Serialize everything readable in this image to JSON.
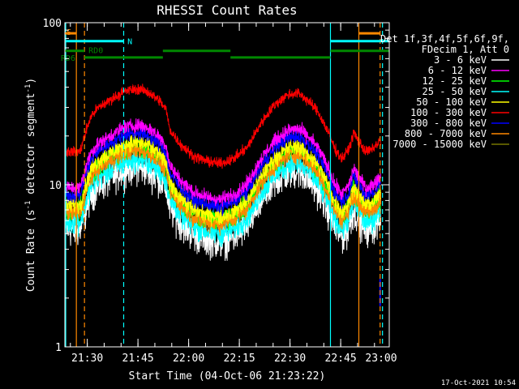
{
  "chart_data": {
    "type": "line",
    "title": "RHESSI Count Rates",
    "xlabel": "Start Time (04-Oct-06 21:23:22)",
    "ylabel_main": "Count Rate (s",
    "ylabel_sup1": "-1",
    "ylabel_mid": " detector segment",
    "ylabel_sup2": "-1",
    "ylabel_end": ")",
    "yscale": "log",
    "ylim": [
      1,
      100
    ],
    "xlim_minutes": [
      0,
      96
    ],
    "xticks": [
      {
        "label": "21:30",
        "minutes": 6.63
      },
      {
        "label": "21:45",
        "minutes": 21.63
      },
      {
        "label": "22:00",
        "minutes": 36.63
      },
      {
        "label": "22:15",
        "minutes": 51.63
      },
      {
        "label": "22:30",
        "minutes": 66.63
      },
      {
        "label": "22:45",
        "minutes": 81.63
      },
      {
        "label": "23:00",
        "minutes": 96.63
      }
    ],
    "yticks": [
      {
        "label": "1",
        "value": 1
      },
      {
        "label": "10",
        "value": 10
      },
      {
        "label": "100",
        "value": 100
      }
    ],
    "legend_header": [
      "Det 1f,3f,4f,5f,6f,9f,",
      "FDecim 1, Att 0"
    ],
    "series": [
      {
        "name": "3 - 6 keV",
        "color": "#ffffff",
        "scale": 0.33,
        "noise": 0.1
      },
      {
        "name": "6 - 12 keV",
        "color": "#ff00ff",
        "scale": 0.6,
        "noise": 0.04
      },
      {
        "name": "12 - 25 keV",
        "color": "#00ff00",
        "scale": 0.44,
        "noise": 0.06
      },
      {
        "name": "25 - 50 keV",
        "color": "#00ffff",
        "scale": 0.37,
        "noise": 0.07
      },
      {
        "name": "50 - 100 keV",
        "color": "#ffff00",
        "scale": 0.47,
        "noise": 0.05
      },
      {
        "name": "100 - 300 keV",
        "color": "#ff0000",
        "scale": 1.0,
        "noise": 0.03
      },
      {
        "name": "300 - 800 keV",
        "color": "#0000ff",
        "scale": 0.54,
        "noise": 0.04
      },
      {
        "name": "800 - 7000 keV",
        "color": "#ff8800",
        "scale": 0.42,
        "noise": 0.05
      },
      {
        "name": "7000 - 15000 keV",
        "color": "#777700",
        "scale": 0.45,
        "noise": 0.0
      }
    ],
    "red_envelope": [
      {
        "t": 4.5,
        "v": 16
      },
      {
        "t": 5.5,
        "v": 19
      },
      {
        "t": 7,
        "v": 24
      },
      {
        "t": 8,
        "v": 27
      },
      {
        "t": 10,
        "v": 30
      },
      {
        "t": 15,
        "v": 35
      },
      {
        "t": 18,
        "v": 38
      },
      {
        "t": 22,
        "v": 39
      },
      {
        "t": 25,
        "v": 37
      },
      {
        "t": 28,
        "v": 33
      },
      {
        "t": 30,
        "v": 29
      },
      {
        "t": 31,
        "v": 22
      },
      {
        "t": 34,
        "v": 18
      },
      {
        "t": 38,
        "v": 15
      },
      {
        "t": 42,
        "v": 14
      },
      {
        "t": 46,
        "v": 13.5
      },
      {
        "t": 50,
        "v": 14.5
      },
      {
        "t": 54,
        "v": 17
      },
      {
        "t": 58,
        "v": 24
      },
      {
        "t": 62,
        "v": 31
      },
      {
        "t": 66,
        "v": 36
      },
      {
        "t": 69,
        "v": 37
      },
      {
        "t": 72,
        "v": 33
      },
      {
        "t": 75,
        "v": 28
      },
      {
        "t": 78,
        "v": 21
      },
      {
        "t": 80,
        "v": 16.5
      },
      {
        "t": 82,
        "v": 14.5
      },
      {
        "t": 84,
        "v": 16.5
      },
      {
        "t": 85.5,
        "v": 21
      },
      {
        "t": 87,
        "v": 18.5
      },
      {
        "t": 89,
        "v": 16
      },
      {
        "t": 91,
        "v": 16.5
      },
      {
        "t": 93,
        "v": 18.5
      }
    ],
    "data_start_minutes": 0.3,
    "data_end_minutes": 93.5,
    "olive_series_value": 2.1,
    "olive_series_minutes": 93.3,
    "vertical_lines": [
      {
        "minutes": 0.25,
        "color": "#00ffff",
        "style": "solid"
      },
      {
        "minutes": 3.4,
        "color": "#ff8800",
        "style": "solid"
      },
      {
        "minutes": 5.8,
        "color": "#ff8800",
        "style": "dashed"
      },
      {
        "minutes": 17.4,
        "color": "#00ffff",
        "style": "dashed"
      },
      {
        "minutes": 78.6,
        "color": "#00ffff",
        "style": "solid"
      },
      {
        "minutes": 87.0,
        "color": "#ff8800",
        "style": "solid"
      },
      {
        "minutes": 93.3,
        "color": "#ff8800",
        "style": "dashed"
      },
      {
        "minutes": 94.0,
        "color": "#00ffff",
        "style": "dashed"
      }
    ],
    "flag_bars": [
      {
        "color": "#ff8800",
        "value": 86,
        "start": 0.0,
        "end": 3.4
      },
      {
        "color": "#ff8800",
        "value": 86,
        "start": 87.0,
        "end": 93.3
      },
      {
        "color": "#00ffff",
        "value": 77,
        "start": 0.0,
        "end": 17.4
      },
      {
        "color": "#00ffff",
        "value": 77,
        "start": 78.6,
        "end": 96.0
      },
      {
        "color": "#008800",
        "value": 67,
        "start": 0.0,
        "end": 5.8
      },
      {
        "color": "#008800",
        "value": 67,
        "start": 29.0,
        "end": 49.0
      },
      {
        "color": "#008800",
        "value": 67,
        "start": 78.6,
        "end": 96.0
      },
      {
        "color": "#008800",
        "value": 61,
        "start": 5.8,
        "end": 29.0
      },
      {
        "color": "#008800",
        "value": 61,
        "start": 49.0,
        "end": 78.6
      }
    ],
    "flag_labels": [
      {
        "text": "S",
        "color": "#ff8800",
        "value": 88,
        "minutes": 0.5
      },
      {
        "text": "N",
        "color": "#00ffff",
        "value": 77,
        "minutes": 18.5
      },
      {
        "text": "RD0",
        "color": "#008800",
        "value": 68,
        "minutes": 7.0
      },
      {
        "text": "RD6",
        "color": "#008800",
        "value": 61,
        "minutes": -1.2
      }
    ],
    "timestamp": "17-Oct-2021 10:54"
  }
}
